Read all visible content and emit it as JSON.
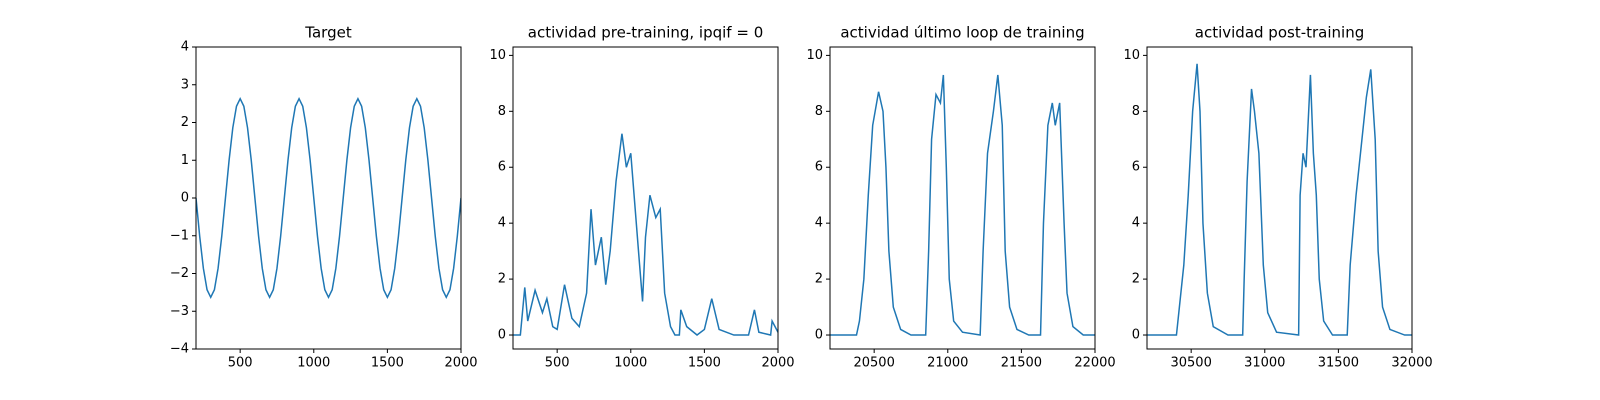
{
  "chart_data": [
    {
      "type": "line",
      "title": "Target",
      "x": [
        200,
        225,
        250,
        275,
        300,
        325,
        350,
        375,
        400,
        425,
        450,
        475,
        500,
        525,
        550,
        575,
        600,
        625,
        650,
        675,
        700,
        725,
        750,
        775,
        800,
        825,
        850,
        875,
        900,
        925,
        950,
        975,
        1000,
        1025,
        1050,
        1075,
        1100,
        1125,
        1150,
        1175,
        1200,
        1225,
        1250,
        1275,
        1300,
        1325,
        1350,
        1375,
        1400,
        1425,
        1450,
        1475,
        1500,
        1525,
        1550,
        1575,
        1600,
        1625,
        1650,
        1675,
        1700,
        1725,
        1750,
        1775,
        1800,
        1825,
        1850,
        1875,
        1900,
        1925,
        1950,
        1975,
        2000
      ],
      "series": [
        {
          "color": "#1f77b4",
          "values": [
            0,
            -1.01,
            -1.86,
            -2.43,
            -2.63,
            -2.43,
            -1.86,
            -1.01,
            0,
            1.01,
            1.86,
            2.43,
            2.63,
            2.43,
            1.86,
            1.01,
            0,
            -1.01,
            -1.86,
            -2.43,
            -2.63,
            -2.43,
            -1.86,
            -1.01,
            0,
            1.01,
            1.86,
            2.43,
            2.63,
            2.43,
            1.86,
            1.01,
            0,
            -1.01,
            -1.86,
            -2.43,
            -2.63,
            -2.43,
            -1.86,
            -1.01,
            0,
            1.01,
            1.86,
            2.43,
            2.63,
            2.43,
            1.86,
            1.01,
            0,
            -1.01,
            -1.86,
            -2.43,
            -2.63,
            -2.43,
            -1.86,
            -1.01,
            0,
            1.01,
            1.86,
            2.43,
            2.63,
            2.43,
            1.86,
            1.01,
            0,
            -1.01,
            -1.86,
            -2.43,
            -2.63,
            -2.43,
            -1.86,
            -1.01,
            0
          ]
        }
      ],
      "xlim": [
        200,
        2000
      ],
      "xticks": [
        500,
        1000,
        1500,
        2000
      ],
      "ylim": [
        -4,
        4
      ],
      "yticks": [
        {
          "value": -4,
          "label": "−4"
        },
        {
          "value": -3,
          "label": "−3"
        },
        {
          "value": -2,
          "label": "−2"
        },
        {
          "value": -1,
          "label": "−1"
        },
        0,
        1,
        2,
        3,
        4
      ]
    },
    {
      "type": "line",
      "title": "actividad pre-training, ipqif = 0",
      "x": [
        200,
        250,
        280,
        300,
        350,
        400,
        430,
        470,
        500,
        550,
        600,
        650,
        700,
        730,
        760,
        800,
        830,
        860,
        900,
        940,
        970,
        1000,
        1030,
        1060,
        1080,
        1100,
        1130,
        1170,
        1200,
        1230,
        1270,
        1300,
        1330,
        1340,
        1380,
        1450,
        1500,
        1550,
        1600,
        1700,
        1800,
        1840,
        1870,
        1950,
        1960,
        2000
      ],
      "series": [
        {
          "color": "#1f77b4",
          "values": [
            0,
            0,
            1.7,
            0.5,
            1.6,
            0.8,
            1.3,
            0.3,
            0.2,
            1.8,
            0.6,
            0.3,
            1.5,
            4.5,
            2.5,
            3.5,
            1.8,
            3,
            5.5,
            7.2,
            6,
            6.5,
            4.5,
            2.5,
            1.2,
            3.5,
            5,
            4.2,
            4.5,
            1.5,
            0.3,
            0,
            0,
            0.9,
            0.3,
            0,
            0.2,
            1.3,
            0.2,
            0,
            0,
            0.9,
            0.1,
            0,
            0.5,
            0.1
          ]
        }
      ],
      "xlim": [
        200,
        2000
      ],
      "xticks": [
        500,
        1000,
        1500,
        2000
      ],
      "ylim": [
        -0.5,
        10.3
      ],
      "yticks": [
        0,
        2,
        4,
        6,
        8,
        10
      ]
    },
    {
      "type": "line",
      "title": "actividad último loop de training",
      "x": [
        20200,
        20380,
        20400,
        20430,
        20460,
        20490,
        20530,
        20560,
        20580,
        20600,
        20630,
        20680,
        20750,
        20850,
        20870,
        20890,
        20920,
        20950,
        20970,
        20990,
        21010,
        21040,
        21100,
        21220,
        21240,
        21270,
        21310,
        21340,
        21370,
        21390,
        21420,
        21470,
        21550,
        21630,
        21650,
        21680,
        21710,
        21730,
        21760,
        21790,
        21810,
        21850,
        21920,
        22000
      ],
      "series": [
        {
          "color": "#1f77b4",
          "values": [
            0,
            0,
            0.5,
            2,
            5,
            7.5,
            8.7,
            8,
            6,
            3,
            1,
            0.2,
            0,
            0,
            3,
            7,
            8.6,
            8.3,
            9.3,
            6,
            2,
            0.5,
            0.1,
            0,
            3,
            6.5,
            8,
            9.3,
            7.5,
            3,
            1,
            0.2,
            0,
            0,
            4,
            7.5,
            8.3,
            7.5,
            8.3,
            4,
            1.5,
            0.3,
            0,
            0
          ]
        }
      ],
      "xlim": [
        20200,
        22000
      ],
      "xticks": [
        20500,
        21000,
        21500,
        22000
      ],
      "ylim": [
        -0.5,
        10.3
      ],
      "yticks": [
        0,
        2,
        4,
        6,
        8,
        10
      ]
    },
    {
      "type": "line",
      "title": "actividad post-training",
      "x": [
        30200,
        30400,
        30420,
        30450,
        30480,
        30510,
        30540,
        30560,
        30580,
        30610,
        30650,
        30750,
        30850,
        30860,
        30880,
        30910,
        30930,
        30960,
        30990,
        31020,
        31080,
        31230,
        31240,
        31260,
        31280,
        31310,
        31330,
        31350,
        31370,
        31400,
        31460,
        31560,
        31580,
        31620,
        31660,
        31690,
        31720,
        31750,
        31770,
        31800,
        31850,
        31950,
        32000
      ],
      "series": [
        {
          "color": "#1f77b4",
          "values": [
            0,
            0,
            1,
            2.5,
            5,
            8,
            9.7,
            8,
            4,
            1.5,
            0.3,
            0,
            0,
            2,
            5.5,
            8.8,
            8,
            6.5,
            2.5,
            0.8,
            0.1,
            0,
            5,
            6.5,
            6,
            9.3,
            6.5,
            5,
            2,
            0.5,
            0,
            0,
            2.5,
            5,
            7,
            8.5,
            9.5,
            7,
            3,
            1,
            0.2,
            0,
            0
          ]
        }
      ],
      "xlim": [
        30200,
        32000
      ],
      "xticks": [
        30500,
        31000,
        31500,
        32000
      ],
      "ylim": [
        -0.5,
        10.3
      ],
      "yticks": [
        0,
        2,
        4,
        6,
        8,
        10
      ]
    }
  ]
}
